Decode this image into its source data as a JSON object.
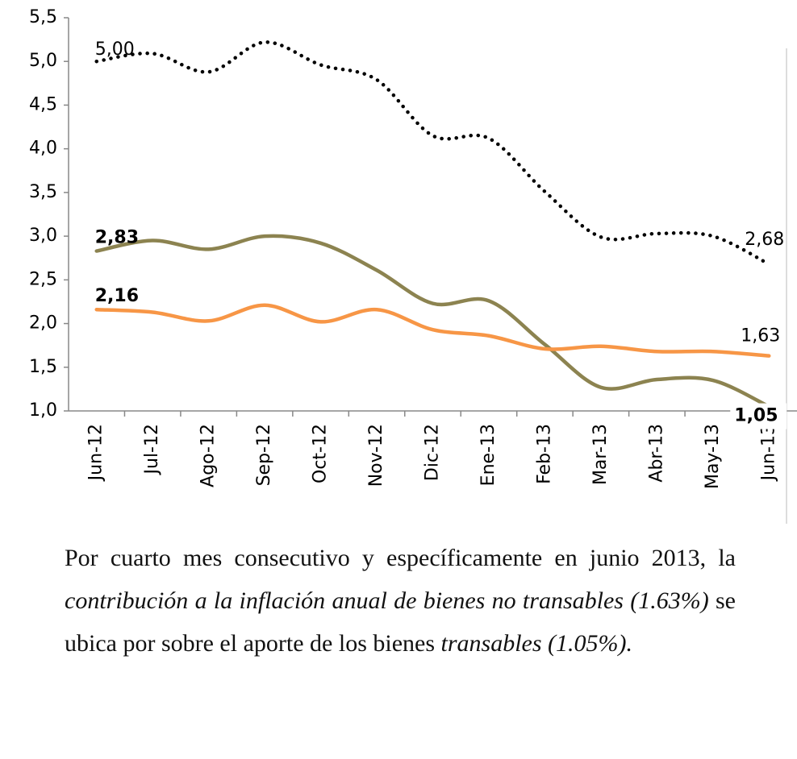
{
  "chart_data": {
    "type": "line",
    "categories": [
      "Jun-12",
      "Jul-12",
      "Ago-12",
      "Sep-12",
      "Oct-12",
      "Nov-12",
      "Dic-12",
      "Ene-13",
      "Feb-13",
      "Mar-13",
      "Abr-13",
      "May-13",
      "Jun-13"
    ],
    "series": [
      {
        "color": "#000000",
        "style": "dotted",
        "values": [
          5.0,
          5.09,
          4.88,
          5.22,
          4.96,
          4.79,
          4.15,
          4.12,
          3.51,
          2.99,
          3.03,
          3.0,
          2.68
        ],
        "value_labels": [
          "5,00",
          null,
          null,
          null,
          null,
          null,
          null,
          null,
          null,
          null,
          null,
          null,
          "2,68"
        ]
      },
      {
        "color": "#8c8350",
        "style": "solid",
        "values": [
          2.83,
          2.95,
          2.85,
          3.0,
          2.92,
          2.61,
          2.23,
          2.26,
          1.76,
          1.27,
          1.36,
          1.35,
          1.05
        ],
        "value_labels": [
          "2,83",
          null,
          null,
          null,
          null,
          null,
          null,
          null,
          null,
          null,
          null,
          null,
          "1,05"
        ]
      },
      {
        "color": "#f79646",
        "style": "solid",
        "values": [
          2.16,
          2.13,
          2.03,
          2.21,
          2.02,
          2.16,
          1.93,
          1.86,
          1.71,
          1.74,
          1.68,
          1.68,
          1.63
        ],
        "value_labels": [
          "2,16",
          null,
          null,
          null,
          null,
          null,
          null,
          null,
          null,
          null,
          null,
          null,
          "1,63"
        ]
      }
    ],
    "ylim": [
      1.0,
      5.5
    ],
    "yticks": [
      {
        "value": 1.0,
        "label": "1,0"
      },
      {
        "value": 1.5,
        "label": "1,5"
      },
      {
        "value": 2.0,
        "label": "2,0"
      },
      {
        "value": 2.5,
        "label": "2,5"
      },
      {
        "value": 3.0,
        "label": "3,0"
      },
      {
        "value": 3.5,
        "label": "3,5"
      },
      {
        "value": 4.0,
        "label": "4,0"
      },
      {
        "value": 4.5,
        "label": "4,5"
      },
      {
        "value": 5.0,
        "label": "5,0"
      },
      {
        "value": 5.5,
        "label": "5,5"
      }
    ],
    "grid": false
  },
  "caption": [
    {
      "text": "Por cuarto mes consecutivo y específicamente en junio 2013, la ",
      "italic": false
    },
    {
      "text": "contribución a la inflación anual de bienes no transables (1.63%)",
      "italic": true
    },
    {
      "text": " se ubica por sobre el aporte de los bienes ",
      "italic": false
    },
    {
      "text": "transables (1.05%).",
      "italic": true
    }
  ]
}
